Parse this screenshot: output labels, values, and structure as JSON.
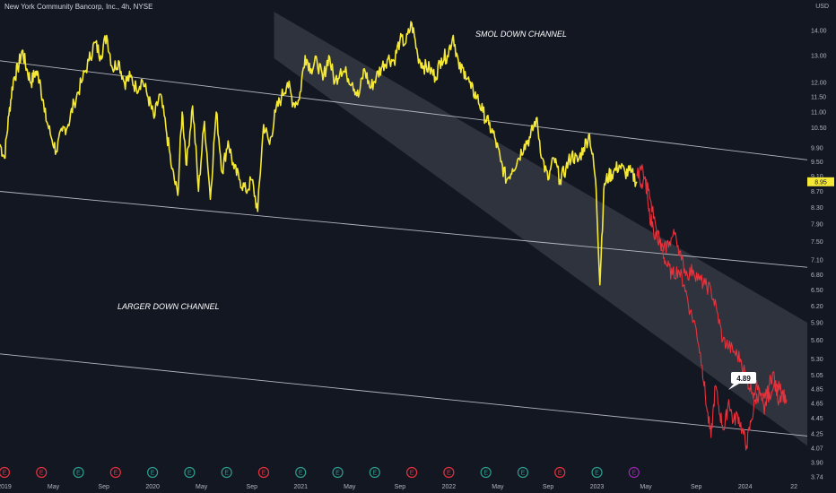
{
  "header": {
    "title": "New York Community Bancorp, Inc., 4h, NYSE",
    "currency": "USD"
  },
  "colors": {
    "background": "#131722",
    "price_line": "#f5e936",
    "projection_line": "#e8323c",
    "channel_fill": "#3a3d47",
    "channel_line": "#d1d4dc",
    "price_label_bg": "#f5e936",
    "axis_text": "#b2b5be"
  },
  "annotations": {
    "smol_channel": "SMOL DOWN CHANNEL",
    "larger_channel": "LARGER DOWN CHANNEL",
    "callout_value": "4.89"
  },
  "earnings_markers": [
    {
      "x": "2019.03",
      "label": "E",
      "color": "#e8323c"
    },
    {
      "x": "2019.28",
      "label": "E",
      "color": "#e8323c"
    },
    {
      "x": "2019.53",
      "label": "E",
      "color": "#2f9e8f"
    },
    {
      "x": "2019.78",
      "label": "E",
      "color": "#e8323c"
    },
    {
      "x": "2020.03",
      "label": "E",
      "color": "#2f9e8f"
    },
    {
      "x": "2020.28",
      "label": "E",
      "color": "#2f9e8f"
    },
    {
      "x": "2020.53",
      "label": "E",
      "color": "#2f9e8f"
    },
    {
      "x": "2020.78",
      "label": "E",
      "color": "#e8323c"
    },
    {
      "x": "2021.03",
      "label": "E",
      "color": "#2f9e8f"
    },
    {
      "x": "2021.28",
      "label": "E",
      "color": "#2f9e8f"
    },
    {
      "x": "2021.53",
      "label": "E",
      "color": "#2f9e8f"
    },
    {
      "x": "2021.78",
      "label": "E",
      "color": "#e8323c"
    },
    {
      "x": "2022.03",
      "label": "E",
      "color": "#e8323c"
    },
    {
      "x": "2022.28",
      "label": "E",
      "color": "#2f9e8f"
    },
    {
      "x": "2022.53",
      "label": "E",
      "color": "#2f9e8f"
    },
    {
      "x": "2022.78",
      "label": "E",
      "color": "#e8323c"
    },
    {
      "x": "2023.03",
      "label": "E",
      "color": "#2f9e8f"
    },
    {
      "x": "2023.28",
      "label": "E",
      "color": "#9c27b0"
    }
  ],
  "chart_data": {
    "type": "line",
    "title": "New York Community Bancorp, Inc., 4h, NYSE",
    "y_scale": "log",
    "ylim": [
      3.74,
      15.0
    ],
    "xlim": [
      "2019.0",
      "2024.45"
    ],
    "y_ticks": [
      "14.00",
      "13.00",
      "12.00",
      "11.50",
      "11.00",
      "10.50",
      "9.90",
      "9.50",
      "9.10",
      "8.70",
      "8.30",
      "7.90",
      "7.50",
      "7.10",
      "6.80",
      "6.50",
      "6.20",
      "5.90",
      "5.60",
      "5.30",
      "5.05",
      "4.85",
      "4.65",
      "4.45",
      "4.25",
      "4.07",
      "3.90",
      "3.74"
    ],
    "x_ticks": [
      {
        "x": "2019.00",
        "label": "2019"
      },
      {
        "x": "2019.33",
        "label": "May"
      },
      {
        "x": "2019.67",
        "label": "Sep"
      },
      {
        "x": "2020.00",
        "label": "2020"
      },
      {
        "x": "2020.33",
        "label": "May"
      },
      {
        "x": "2020.67",
        "label": "Sep"
      },
      {
        "x": "2021.00",
        "label": "2021"
      },
      {
        "x": "2021.33",
        "label": "May"
      },
      {
        "x": "2021.67",
        "label": "Sep"
      },
      {
        "x": "2022.00",
        "label": "2022"
      },
      {
        "x": "2022.33",
        "label": "May"
      },
      {
        "x": "2022.67",
        "label": "Sep"
      },
      {
        "x": "2023.00",
        "label": "2023"
      },
      {
        "x": "2023.33",
        "label": "May"
      },
      {
        "x": "2023.67",
        "label": "Sep"
      },
      {
        "x": "2024.00",
        "label": "2024"
      },
      {
        "x": "2024.33",
        "label": "22"
      }
    ],
    "last_price": "8.95",
    "series": [
      {
        "role": "price",
        "x": [
          2019.0,
          2019.03,
          2019.06,
          2019.09,
          2019.12,
          2019.15,
          2019.18,
          2019.21,
          2019.24,
          2019.27,
          2019.3,
          2019.34,
          2019.38,
          2019.42,
          2019.46,
          2019.5,
          2019.55,
          2019.6,
          2019.64,
          2019.68,
          2019.72,
          2019.76,
          2019.8,
          2019.84,
          2019.88,
          2019.92,
          2019.96,
          2020.0,
          2020.04,
          2020.08,
          2020.12,
          2020.16,
          2020.2,
          2020.23,
          2020.26,
          2020.3,
          2020.34,
          2020.38,
          2020.42,
          2020.46,
          2020.5,
          2020.54,
          2020.58,
          2020.62,
          2020.66,
          2020.7,
          2020.74,
          2020.78,
          2020.82,
          2020.86,
          2020.9,
          2020.94,
          2020.98,
          2021.02,
          2021.06,
          2021.1,
          2021.14,
          2021.18,
          2021.22,
          2021.26,
          2021.3,
          2021.34,
          2021.38,
          2021.42,
          2021.46,
          2021.5,
          2021.54,
          2021.58,
          2021.62,
          2021.66,
          2021.7,
          2021.74,
          2021.78,
          2021.82,
          2021.86,
          2021.9,
          2021.94,
          2021.98,
          2022.02,
          2022.06,
          2022.1,
          2022.14,
          2022.18,
          2022.22,
          2022.26,
          2022.3,
          2022.34,
          2022.38,
          2022.42,
          2022.46,
          2022.5,
          2022.54,
          2022.58,
          2022.62,
          2022.66,
          2022.7,
          2022.74,
          2022.78,
          2022.82,
          2022.86,
          2022.9,
          2022.94,
          2022.98,
          2023.02,
          2023.05,
          2023.08,
          2023.11,
          2023.14,
          2023.18,
          2023.22,
          2023.26,
          2023.3
        ],
        "y": [
          10.0,
          9.6,
          10.9,
          12.1,
          12.5,
          13.2,
          12.5,
          12.0,
          12.4,
          12.1,
          11.0,
          10.3,
          9.8,
          10.4,
          10.6,
          11.3,
          12.0,
          12.8,
          13.5,
          13.0,
          13.8,
          12.5,
          12.8,
          12.0,
          12.2,
          11.8,
          12.1,
          11.5,
          10.8,
          11.6,
          10.5,
          9.3,
          8.6,
          11.0,
          9.4,
          11.2,
          8.7,
          10.7,
          8.5,
          11.0,
          9.2,
          10.1,
          9.3,
          9.0,
          8.7,
          9.0,
          8.2,
          10.6,
          10.0,
          11.0,
          11.5,
          12.0,
          11.3,
          11.4,
          13.0,
          12.5,
          12.8,
          12.1,
          13.0,
          12.0,
          12.5,
          12.3,
          12.0,
          11.5,
          12.5,
          11.8,
          12.2,
          12.6,
          12.9,
          12.8,
          13.6,
          13.5,
          14.3,
          13.0,
          12.6,
          12.5,
          12.2,
          12.9,
          13.0,
          13.8,
          12.5,
          12.4,
          11.8,
          11.5,
          11.0,
          10.6,
          10.2,
          9.5,
          9.0,
          9.3,
          9.6,
          10.0,
          10.2,
          10.8,
          9.6,
          9.0,
          9.6,
          9.0,
          9.3,
          9.7,
          9.5,
          9.9,
          10.3,
          9.0,
          6.6,
          8.9,
          9.1,
          9.2,
          9.4,
          9.2,
          9.2,
          8.95
        ]
      },
      {
        "role": "projection",
        "x": [
          2023.3,
          2023.33,
          2023.36,
          2023.39,
          2023.43,
          2023.47,
          2023.5,
          2023.54,
          2023.58,
          2023.62,
          2023.66,
          2023.7,
          2023.74,
          2023.77,
          2023.8,
          2023.83,
          2023.86,
          2023.89,
          2023.92,
          2023.95,
          2023.98,
          2024.01,
          2024.04,
          2024.07,
          2024.1,
          2024.13,
          2024.16,
          2024.19,
          2024.22,
          2024.25,
          2024.28,
          2024.31
        ],
        "y": [
          9.2,
          8.9,
          9.0,
          8.5,
          7.8,
          7.3,
          7.0,
          6.8,
          6.9,
          6.6,
          6.1,
          5.8,
          5.2,
          4.6,
          4.2,
          4.9,
          4.5,
          4.3,
          4.7,
          4.4,
          4.5,
          4.3,
          4.1,
          4.4,
          4.7,
          4.8,
          4.5,
          4.9,
          5.1,
          4.7,
          4.8,
          4.7
        ]
      },
      {
        "role": "projection",
        "x": [
          2023.3,
          2023.34,
          2023.38,
          2023.41,
          2023.44,
          2023.48,
          2023.52,
          2023.56,
          2023.6,
          2023.64,
          2023.68,
          2023.72,
          2023.76,
          2023.8,
          2023.84,
          2023.88,
          2023.92,
          2023.96,
          2024.0,
          2024.04,
          2024.08,
          2024.12,
          2024.16,
          2024.2,
          2024.24,
          2024.28
        ],
        "y": [
          9.1,
          9.3,
          8.2,
          7.8,
          7.5,
          7.3,
          7.5,
          7.7,
          7.1,
          6.8,
          6.9,
          6.7,
          6.6,
          6.5,
          6.1,
          5.6,
          5.5,
          5.4,
          5.3,
          5.0,
          4.8,
          4.9,
          4.8,
          4.7,
          4.9,
          4.8
        ]
      }
    ],
    "channels": [
      {
        "name": "SMOL DOWN CHANNEL",
        "upper": [
          [
            2020.85,
            14.8
          ],
          [
            2024.45,
            5.9
          ]
        ],
        "lower": [
          [
            2020.85,
            12.9
          ],
          [
            2024.45,
            4.1
          ]
        ],
        "filled": true
      },
      {
        "name": "LARGER DOWN CHANNEL",
        "upper": [
          [
            2019.0,
            12.8
          ],
          [
            2024.45,
            9.55
          ]
        ],
        "lower": [
          [
            2019.0,
            8.7
          ],
          [
            2024.45,
            6.95
          ]
        ],
        "filled": false
      },
      {
        "name": "",
        "upper": [
          [
            2019.0,
            5.38
          ],
          [
            2024.45,
            4.22
          ]
        ],
        "lower": null,
        "filled": false
      }
    ]
  }
}
